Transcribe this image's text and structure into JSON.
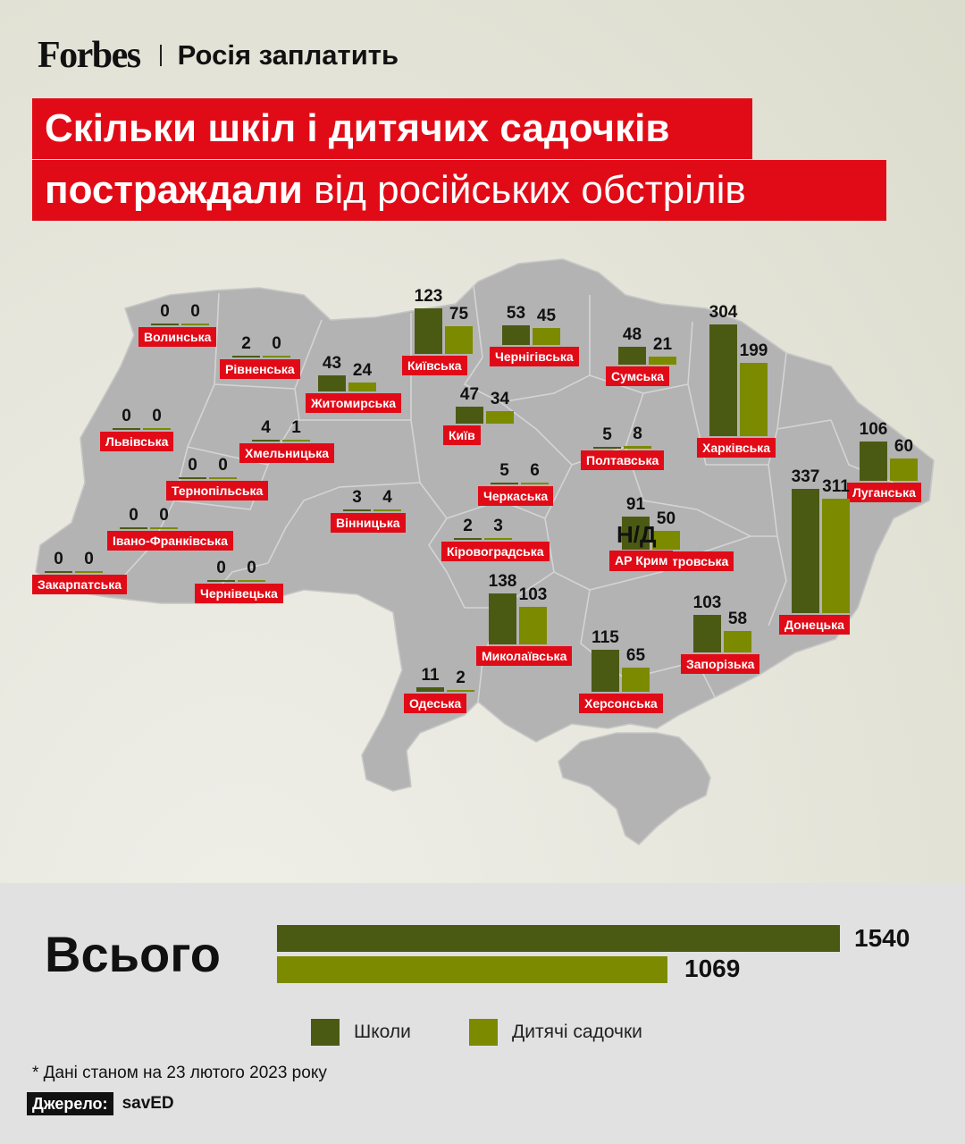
{
  "header": {
    "logo": "Forbes",
    "section": "Росія заплатить"
  },
  "title": {
    "line1": "Скільки шкіл і дитячих садочків",
    "line2_bold": "постраждали",
    "line2_rest": " від російських обстрілів"
  },
  "colors": {
    "accent": "#e10b17",
    "schools": "#4b5a13",
    "kindergartens": "#7c8a00",
    "map": "#b3b3b3"
  },
  "chart_data": {
    "type": "bar",
    "series": [
      {
        "name": "Школи"
      },
      {
        "name": "Дитячі садочки"
      }
    ],
    "regions": [
      {
        "name": "Волинська",
        "schools": "0",
        "kindergartens": "0"
      },
      {
        "name": "Рівненська",
        "schools": "2",
        "kindergartens": "0"
      },
      {
        "name": "Житомирська",
        "schools": "43",
        "kindergartens": "24"
      },
      {
        "name": "Київська",
        "schools": "123",
        "kindergartens": "75"
      },
      {
        "name": "Чернігівська",
        "schools": "53",
        "kindergartens": "45"
      },
      {
        "name": "Сумська",
        "schools": "48",
        "kindergartens": "21"
      },
      {
        "name": "Харківська",
        "schools": "304",
        "kindergartens": "199"
      },
      {
        "name": "Львівська",
        "schools": "0",
        "kindergartens": "0"
      },
      {
        "name": "Хмельницька",
        "schools": "4",
        "kindergartens": "1"
      },
      {
        "name": "Київ",
        "schools": "47",
        "kindergartens": "34"
      },
      {
        "name": "Полтавська",
        "schools": "5",
        "kindergartens": "8"
      },
      {
        "name": "Луганська",
        "schools": "106",
        "kindergartens": "60"
      },
      {
        "name": "Тернопільська",
        "schools": "0",
        "kindergartens": "0"
      },
      {
        "name": "Черкаська",
        "schools": "5",
        "kindergartens": "6"
      },
      {
        "name": "Вінницька",
        "schools": "3",
        "kindergartens": "4"
      },
      {
        "name": "Донецька",
        "schools": "337",
        "kindergartens": "311"
      },
      {
        "name": "Івано-Франківська",
        "schools": "0",
        "kindergartens": "0"
      },
      {
        "name": "Кіровоградська",
        "schools": "2",
        "kindergartens": "3"
      },
      {
        "name": "Дніпропетровська",
        "schools": "91",
        "kindergartens": "50"
      },
      {
        "name": "Закарпатська",
        "schools": "0",
        "kindergartens": "0"
      },
      {
        "name": "Чернівецька",
        "schools": "0",
        "kindergartens": "0"
      },
      {
        "name": "Миколаївська",
        "schools": "138",
        "kindergartens": "103"
      },
      {
        "name": "Запорізька",
        "schools": "103",
        "kindergartens": "58"
      },
      {
        "name": "Херсонська",
        "schools": "115",
        "kindergartens": "65"
      },
      {
        "name": "Одеська",
        "schools": "11",
        "kindergartens": "2"
      }
    ],
    "crimea": {
      "name": "АР Крим",
      "value": "Н/Д"
    }
  },
  "totals": {
    "label": "Всього",
    "schools": "1540",
    "kindergartens": "1069"
  },
  "legend": {
    "schools": "Школи",
    "kindergartens": "Дитячі садочки"
  },
  "footnote": "* Дані станом на 23 лютого 2023 року",
  "source": {
    "label": "Джерело:",
    "value": "savED"
  }
}
